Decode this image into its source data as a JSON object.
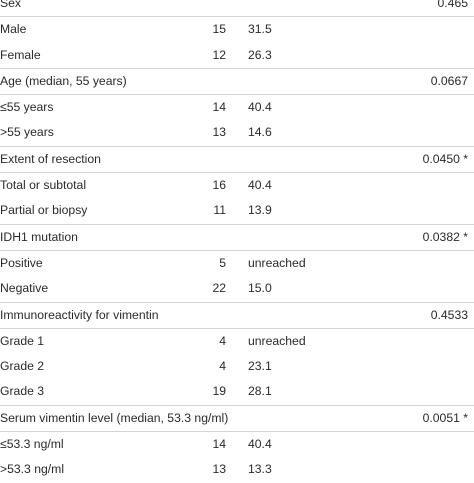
{
  "rows": [
    {
      "label": "Sex",
      "n": "",
      "median": "",
      "p": "0.465",
      "header": true
    },
    {
      "label": "Male",
      "n": "15",
      "median": "31.5",
      "p": ""
    },
    {
      "label": "Female",
      "n": "12",
      "median": "26.3",
      "p": "",
      "group_end": true
    },
    {
      "label": "Age (median, 55 years)",
      "n": "",
      "median": "",
      "p": "0.0667",
      "header": true
    },
    {
      "label": "≤55 years",
      "n": "14",
      "median": "40.4",
      "p": ""
    },
    {
      "label": ">55 years",
      "n": "13",
      "median": "14.6",
      "p": "",
      "group_end": true
    },
    {
      "label": "Extent of resection",
      "n": "",
      "median": "",
      "p": "0.0450 *",
      "header": true
    },
    {
      "label": "Total or subtotal",
      "n": "16",
      "median": "40.4",
      "p": ""
    },
    {
      "label": "Partial or biopsy",
      "n": "11",
      "median": "13.9",
      "p": "",
      "group_end": true
    },
    {
      "label": "IDH1 mutation",
      "n": "",
      "median": "",
      "p": "0.0382 *",
      "header": true
    },
    {
      "label": "Positive",
      "n": "5",
      "median": "unreached",
      "p": ""
    },
    {
      "label": "Negative",
      "n": "22",
      "median": "15.0",
      "p": "",
      "group_end": true
    },
    {
      "label": "Immunoreactivity for vimentin",
      "n": "",
      "median": "",
      "p": "0.4533",
      "header": true
    },
    {
      "label": "Grade 1",
      "n": "4",
      "median": "unreached",
      "p": ""
    },
    {
      "label": "Grade 2",
      "n": "4",
      "median": "23.1",
      "p": ""
    },
    {
      "label": "Grade 3",
      "n": "19",
      "median": "28.1",
      "p": "",
      "group_end": true
    },
    {
      "label": "Serum vimentin level (median, 53.3 ng/ml)",
      "n": "",
      "median": "",
      "p": "0.0051 *",
      "header": true
    },
    {
      "label": "≤53.3 ng/ml",
      "n": "14",
      "median": "40.4",
      "p": ""
    },
    {
      "label": ">53.3 ng/ml",
      "n": "13",
      "median": "13.3",
      "p": ""
    }
  ]
}
